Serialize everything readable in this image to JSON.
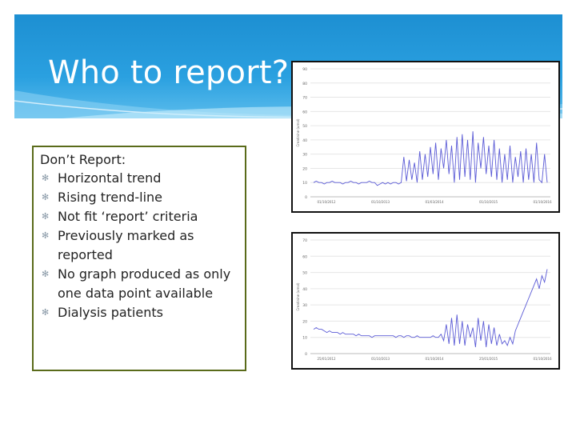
{
  "slide": {
    "title": "Who to report?",
    "box_title": "Don’t Report:",
    "bullets": [
      "Horizontal trend",
      "Rising trend-line",
      "Not fit ‘report’ criteria",
      "Previously marked as reported",
      "No graph produced as only one data point available",
      "Dialysis patients"
    ],
    "bullet_glyph": "✻"
  },
  "colors": {
    "header": "#1d8fd2",
    "line": "#5b5bd6",
    "box_border": "#5a6b1a"
  },
  "chart_data": [
    {
      "type": "line",
      "ylim": [
        0,
        90
      ],
      "yticks": [
        "0",
        "10",
        "20",
        "30",
        "40",
        "50",
        "60",
        "70",
        "80",
        "90"
      ],
      "xticks": [
        "01/10/2012",
        "01/10/2013",
        "01/03/2014",
        "01/10/2015",
        "01/10/2016"
      ],
      "ylabel": "Creatinine (umol)",
      "values": [
        10,
        11,
        10,
        10,
        9,
        10,
        10,
        11,
        10,
        10,
        10,
        9,
        10,
        10,
        11,
        10,
        10,
        9,
        10,
        10,
        10,
        11,
        10,
        10,
        8,
        9,
        10,
        9,
        10,
        9,
        10,
        10,
        9,
        10,
        28,
        11,
        26,
        12,
        24,
        10,
        32,
        12,
        30,
        14,
        35,
        16,
        38,
        12,
        34,
        20,
        40,
        16,
        36,
        10,
        42,
        12,
        44,
        14,
        40,
        12,
        46,
        10,
        38,
        20,
        42,
        16,
        36,
        14,
        40,
        12,
        34,
        10,
        30,
        12,
        36,
        10,
        28,
        14,
        32,
        10,
        34,
        12,
        30,
        10,
        38,
        12,
        10,
        30,
        10
      ]
    },
    {
      "type": "line",
      "ylim": [
        0,
        70
      ],
      "yticks": [
        "0",
        "10",
        "20",
        "30",
        "40",
        "50",
        "60",
        "70"
      ],
      "xticks": [
        "25/01/2012",
        "01/10/2013",
        "01/10/2014",
        "25/01/2015",
        "01/10/2016"
      ],
      "ylabel": "Creatinine (umol)",
      "values": [
        15,
        16,
        15,
        15,
        14,
        13,
        14,
        13,
        13,
        13,
        12,
        13,
        12,
        12,
        12,
        12,
        11,
        12,
        11,
        11,
        11,
        11,
        10,
        11,
        11,
        11,
        11,
        11,
        11,
        11,
        11,
        10,
        11,
        11,
        10,
        11,
        11,
        10,
        10,
        11,
        10,
        10,
        10,
        10,
        10,
        11,
        10,
        10,
        12,
        8,
        18,
        6,
        22,
        5,
        24,
        6,
        20,
        5,
        18,
        10,
        16,
        4,
        22,
        8,
        20,
        4,
        18,
        6,
        16,
        5,
        12,
        6,
        8,
        5,
        10,
        6,
        14,
        18,
        22,
        26,
        30,
        34,
        38,
        42,
        46,
        40,
        48,
        44,
        52
      ]
    }
  ]
}
